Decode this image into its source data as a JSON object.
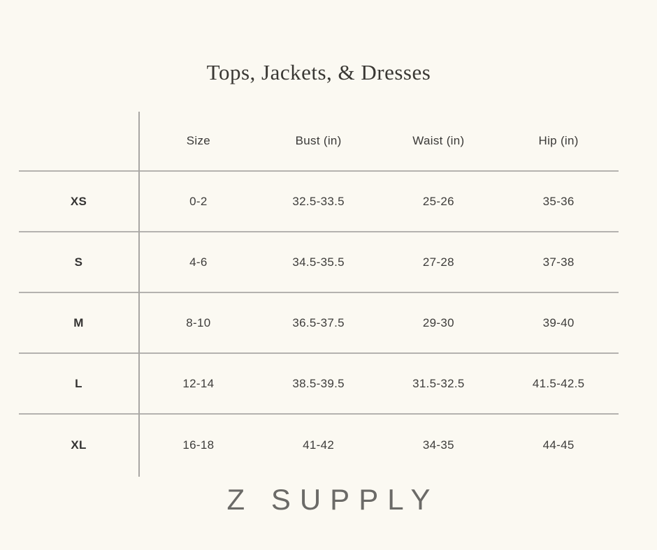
{
  "title": "Tops, Jackets, & Dresses",
  "brand": {
    "logo": "Z SUPPLY"
  },
  "colors": {
    "background": "#fbf9f2",
    "text": "#3e3d3b",
    "grid_line": "#b4b2af",
    "logo_text": "#6b6a67"
  },
  "chart_data": {
    "type": "table",
    "title": "Tops, Jackets, & Dresses",
    "columns": [
      "Size",
      "Bust (in)",
      "Waist (in)",
      "Hip (in)"
    ],
    "rows": [
      {
        "label": "XS",
        "cells": [
          "0-2",
          "32.5-33.5",
          "25-26",
          "35-36"
        ]
      },
      {
        "label": "S",
        "cells": [
          "4-6",
          "34.5-35.5",
          "27-28",
          "37-38"
        ]
      },
      {
        "label": "M",
        "cells": [
          "8-10",
          "36.5-37.5",
          "29-30",
          "39-40"
        ]
      },
      {
        "label": "L",
        "cells": [
          "12-14",
          "38.5-39.5",
          "31.5-32.5",
          "41.5-42.5"
        ]
      },
      {
        "label": "XL",
        "cells": [
          "16-18",
          "41-42",
          "34-35",
          "44-45"
        ]
      }
    ],
    "layout": {
      "grid": "horizontal row separators + single vertical divider after row-label column",
      "legend": "none",
      "footer": "Z SUPPLY"
    }
  }
}
